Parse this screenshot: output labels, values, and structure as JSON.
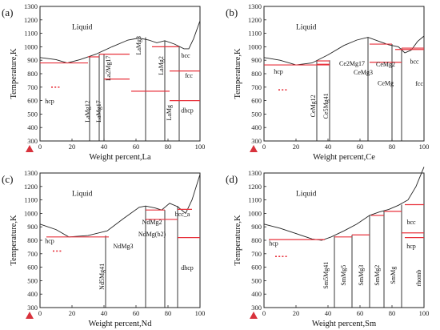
{
  "chart_data": [
    {
      "type": "line",
      "panel": "(a)",
      "xlabel": "Weight percent,La",
      "ylabel": "Temperature,K",
      "xlim": [
        0,
        100
      ],
      "ylim": [
        300,
        1300
      ],
      "xticks": [
        "0",
        "20",
        "40",
        "60",
        "80",
        "100"
      ],
      "yticks": [
        "300",
        "400",
        "500",
        "600",
        "700",
        "800",
        "900",
        "1000",
        "1100",
        "1200",
        "1300"
      ],
      "liquid_label": "Liquid",
      "phases": [
        {
          "text": "hcp",
          "x": 6,
          "y": 580,
          "rot": 0
        },
        {
          "text": "LaMg12",
          "x": 31,
          "y": 520,
          "rot": -90
        },
        {
          "text": "LaMg17",
          "x": 38,
          "y": 520,
          "rot": -90
        },
        {
          "text": "La2Mg17",
          "x": 44,
          "y": 840,
          "rot": -90
        },
        {
          "text": "LaMg3",
          "x": 63,
          "y": 1010,
          "rot": -90
        },
        {
          "text": "LaMg2",
          "x": 77,
          "y": 860,
          "rot": -90
        },
        {
          "text": "bcc",
          "x": 91,
          "y": 920,
          "rot": 0
        },
        {
          "text": "fcc",
          "x": 93,
          "y": 770,
          "rot": 0
        },
        {
          "text": "dhcp",
          "x": 92,
          "y": 510,
          "rot": 0
        },
        {
          "text": "LaMg",
          "x": 82,
          "y": 510,
          "rot": -90
        }
      ],
      "liquidus": [
        [
          0,
          920
        ],
        [
          10,
          905
        ],
        [
          17,
          880
        ],
        [
          25,
          905
        ],
        [
          35,
          945
        ],
        [
          45,
          1000
        ],
        [
          55,
          1050
        ],
        [
          62,
          1065
        ],
        [
          68,
          1050
        ],
        [
          73,
          1030
        ],
        [
          78,
          1045
        ],
        [
          84,
          1020
        ],
        [
          90,
          985
        ],
        [
          93,
          985
        ],
        [
          96,
          1060
        ],
        [
          100,
          1193
        ]
      ],
      "red_horizontals": [
        [
          0,
          30,
          880
        ],
        [
          30,
          37,
          925
        ],
        [
          37,
          56,
          945
        ],
        [
          40,
          56,
          760
        ],
        [
          57,
          81,
          670
        ],
        [
          70,
          87,
          1000
        ],
        [
          81,
          100,
          820
        ],
        [
          81,
          100,
          600
        ]
      ],
      "black_verticals": [
        [
          31,
          300,
          925
        ],
        [
          37,
          300,
          945
        ],
        [
          40,
          300,
          945
        ],
        [
          66,
          300,
          1070
        ],
        [
          78,
          300,
          1045
        ],
        [
          87,
          300,
          1000
        ]
      ],
      "red_dots": [
        [
          7,
          13,
          700
        ]
      ]
    },
    {
      "type": "line",
      "panel": "(b)",
      "xlabel": "Weight percent,Ce",
      "ylabel": "Temperature,K",
      "xlim": [
        0,
        100
      ],
      "ylim": [
        300,
        1300
      ],
      "xticks": [
        "0",
        "20",
        "40",
        "60",
        "80",
        "100"
      ],
      "yticks": [
        "300",
        "400",
        "500",
        "600",
        "700",
        "800",
        "900",
        "1000",
        "1100",
        "1200",
        "1300"
      ],
      "liquid_label": "Liquid",
      "phases": [
        {
          "text": "hcp",
          "x": 9,
          "y": 800,
          "rot": 0
        },
        {
          "text": "CeMg12",
          "x": 32,
          "y": 560,
          "rot": -90
        },
        {
          "text": "Ce5Mg41",
          "x": 40,
          "y": 560,
          "rot": -90
        },
        {
          "text": "Ce2Mg17",
          "x": 55,
          "y": 860,
          "rot": 0
        },
        {
          "text": "CeMg3",
          "x": 62,
          "y": 795,
          "rot": 0
        },
        {
          "text": "CeMg2",
          "x": 76,
          "y": 855,
          "rot": 0
        },
        {
          "text": "CeMg",
          "x": 76,
          "y": 715,
          "rot": 0
        },
        {
          "text": "bcc",
          "x": 94,
          "y": 875,
          "rot": 0
        },
        {
          "text": "fcc",
          "x": 97,
          "y": 710,
          "rot": 0
        }
      ],
      "liquidus": [
        [
          0,
          920
        ],
        [
          10,
          900
        ],
        [
          20,
          865
        ],
        [
          30,
          880
        ],
        [
          40,
          940
        ],
        [
          50,
          1010
        ],
        [
          58,
          1050
        ],
        [
          65,
          1070
        ],
        [
          72,
          1040
        ],
        [
          78,
          1015
        ],
        [
          84,
          1000
        ],
        [
          88,
          955
        ],
        [
          92,
          975
        ],
        [
          96,
          1040
        ],
        [
          100,
          1080
        ]
      ],
      "red_horizontals": [
        [
          0,
          41,
          865
        ],
        [
          33,
          41,
          895
        ],
        [
          33,
          41,
          870
        ],
        [
          66,
          80,
          1020
        ],
        [
          66,
          86,
          885
        ],
        [
          82,
          100,
          980
        ],
        [
          86,
          100,
          990
        ]
      ],
      "black_verticals": [
        [
          33,
          300,
          895
        ],
        [
          41,
          300,
          900
        ],
        [
          65,
          300,
          1070
        ],
        [
          80,
          300,
          1020
        ],
        [
          86,
          300,
          990
        ]
      ],
      "red_dots": [
        [
          9,
          15,
          680
        ]
      ]
    },
    {
      "type": "line",
      "panel": "(c)",
      "xlabel": "Weight percent,Nd",
      "ylabel": "Temperature,K",
      "xlim": [
        0,
        100
      ],
      "ylim": [
        300,
        1300
      ],
      "xticks": [
        "0",
        "20",
        "40",
        "60",
        "80",
        "100"
      ],
      "yticks": [
        "300",
        "400",
        "500",
        "600",
        "700",
        "800",
        "900",
        "1000",
        "1100",
        "1200",
        "1300"
      ],
      "liquid_label": "Liquid",
      "phases": [
        {
          "text": "hcp",
          "x": 6,
          "y": 780,
          "rot": 0
        },
        {
          "text": "Nd5Mg41",
          "x": 40,
          "y": 530,
          "rot": -90
        },
        {
          "text": "NdMg3",
          "x": 52,
          "y": 740,
          "rot": 0
        },
        {
          "text": "NdMg2",
          "x": 70,
          "y": 920,
          "rot": 0
        },
        {
          "text": "NdMg(b2)",
          "x": 70,
          "y": 830,
          "rot": 0
        },
        {
          "text": "bcc_a",
          "x": 89,
          "y": 980,
          "rot": 0
        },
        {
          "text": "dhcp",
          "x": 92,
          "y": 580,
          "rot": 0
        }
      ],
      "liquidus": [
        [
          0,
          920
        ],
        [
          10,
          880
        ],
        [
          18,
          825
        ],
        [
          30,
          835
        ],
        [
          42,
          870
        ],
        [
          52,
          960
        ],
        [
          62,
          1045
        ],
        [
          66,
          1055
        ],
        [
          72,
          1040
        ],
        [
          76,
          1025
        ],
        [
          81,
          1075
        ],
        [
          86,
          1050
        ],
        [
          91,
          1000
        ],
        [
          95,
          1100
        ],
        [
          100,
          1290
        ]
      ],
      "red_horizontals": [
        [
          4,
          43,
          825
        ],
        [
          66,
          78,
          1025
        ],
        [
          66,
          86,
          955
        ],
        [
          86,
          100,
          820
        ],
        [
          86,
          95,
          1030
        ]
      ],
      "black_verticals": [
        [
          41,
          300,
          835
        ],
        [
          66,
          300,
          1055
        ],
        [
          78,
          300,
          1025
        ],
        [
          86,
          300,
          1055
        ]
      ],
      "red_dots": [
        [
          8,
          14,
          720
        ]
      ]
    },
    {
      "type": "line",
      "panel": "(d)",
      "xlabel": "Weight percent,Sm",
      "ylabel": "Temperature,K",
      "xlim": [
        0,
        100
      ],
      "ylim": [
        300,
        1300
      ],
      "xticks": [
        "0",
        "20",
        "40",
        "60",
        "80",
        "100"
      ],
      "yticks": [
        "300",
        "400",
        "500",
        "600",
        "700",
        "800",
        "900",
        "1000",
        "1100",
        "1200",
        "1300"
      ],
      "liquid_label": "Liquid",
      "phases": [
        {
          "text": "hcp",
          "x": 6,
          "y": 760,
          "rot": 0
        },
        {
          "text": "Sm5Mg41",
          "x": 40,
          "y": 540,
          "rot": -90
        },
        {
          "text": "SmMg5",
          "x": 51,
          "y": 540,
          "rot": -90
        },
        {
          "text": "SmMg3",
          "x": 62,
          "y": 540,
          "rot": -90
        },
        {
          "text": "SmMg2",
          "x": 72,
          "y": 540,
          "rot": -90
        },
        {
          "text": "SmMg",
          "x": 82,
          "y": 540,
          "rot": -90
        },
        {
          "text": "bcc",
          "x": 92,
          "y": 920,
          "rot": 0
        },
        {
          "text": "hcp",
          "x": 92,
          "y": 740,
          "rot": 0
        },
        {
          "text": "rhomb",
          "x": 98,
          "y": 520,
          "rot": -90
        }
      ],
      "liquidus": [
        [
          0,
          920
        ],
        [
          10,
          890
        ],
        [
          20,
          850
        ],
        [
          30,
          810
        ],
        [
          36,
          800
        ],
        [
          42,
          825
        ],
        [
          50,
          870
        ],
        [
          58,
          920
        ],
        [
          66,
          985
        ],
        [
          72,
          1010
        ],
        [
          78,
          1030
        ],
        [
          84,
          1060
        ],
        [
          90,
          1100
        ],
        [
          95,
          1200
        ],
        [
          100,
          1345
        ]
      ],
      "red_horizontals": [
        [
          3,
          38,
          805
        ],
        [
          44,
          55,
          825
        ],
        [
          55,
          66,
          840
        ],
        [
          67,
          75,
          985
        ],
        [
          75,
          86,
          1015
        ],
        [
          86,
          100,
          855
        ],
        [
          88,
          100,
          1065
        ],
        [
          88,
          100,
          820
        ]
      ],
      "black_verticals": [
        [
          44,
          300,
          830
        ],
        [
          55,
          300,
          840
        ],
        [
          66,
          300,
          985
        ],
        [
          75,
          300,
          1020
        ],
        [
          86,
          300,
          1065
        ]
      ],
      "red_dots": [
        [
          7,
          15,
          680
        ]
      ]
    }
  ]
}
